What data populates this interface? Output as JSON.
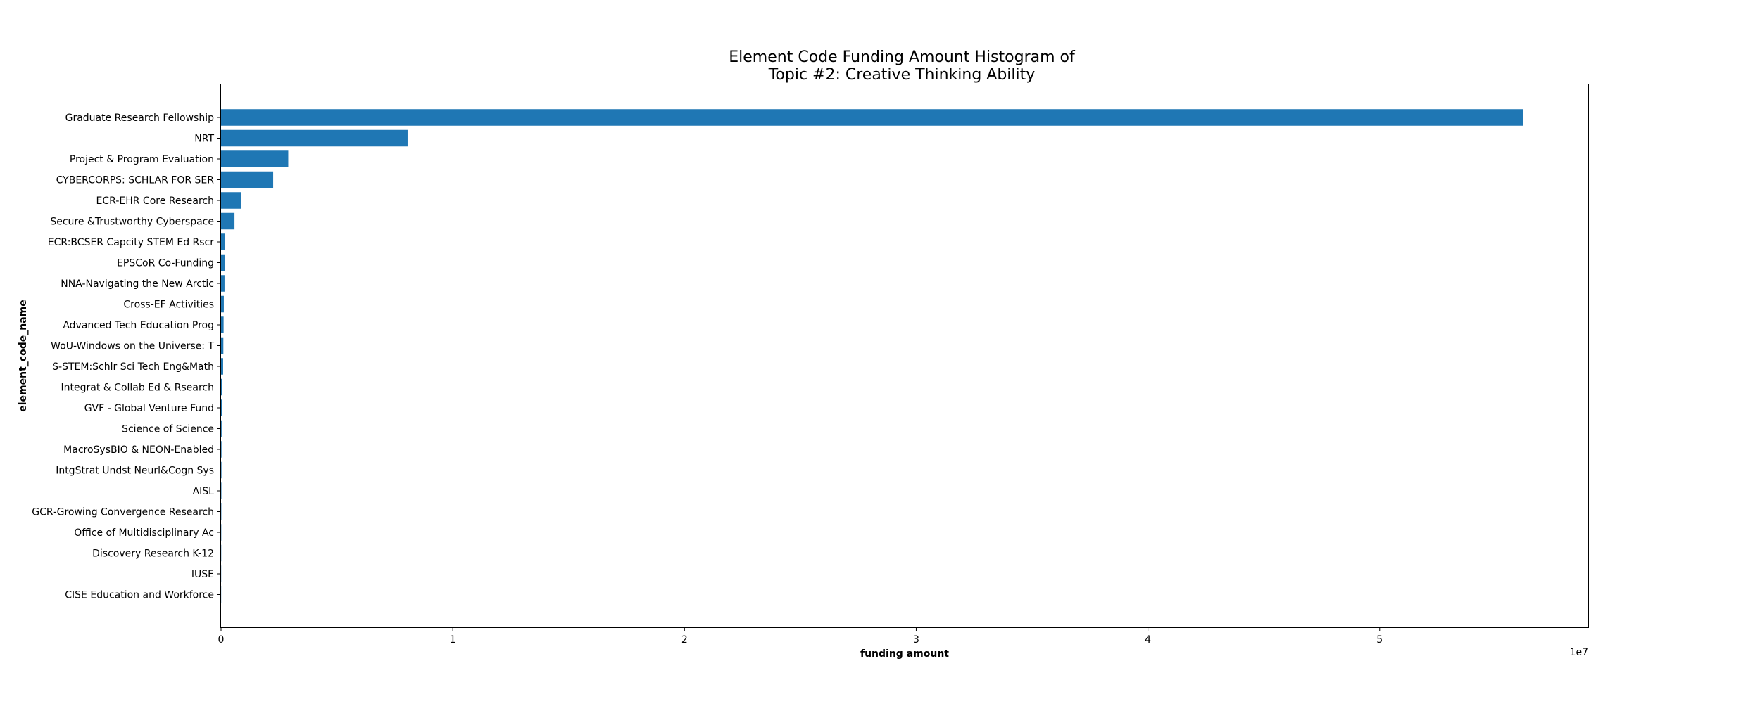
{
  "chart_data": {
    "type": "bar",
    "orientation": "horizontal",
    "title_lines": [
      "Element Code Funding Amount Histogram of",
      "Topic #2: Creative Thinking Ability"
    ],
    "xlabel": "funding amount",
    "ylabel": "element_code_name",
    "x_offset_label": "1e7",
    "x_scale": 10000000,
    "xlim": [
      0,
      59000000
    ],
    "x_tick_values": [
      0,
      10000000,
      20000000,
      30000000,
      40000000,
      50000000
    ],
    "x_tick_labels": [
      "0",
      "1",
      "2",
      "3",
      "4",
      "5"
    ],
    "bar_color": "#1f77b4",
    "grid": false,
    "legend": "none",
    "categories": [
      "Graduate Research Fellowship",
      "NRT",
      "Project & Program Evaluation",
      "CYBERCORPS: SCHLAR FOR SER",
      "ECR-EHR Core Research",
      "Secure &Trustworthy Cyberspace",
      "ECR:BCSER Capcity STEM Ed Rscr",
      "EPSCoR Co-Funding",
      "NNA-Navigating the New Arctic",
      "Cross-EF Activities",
      "Advanced Tech Education Prog",
      "WoU-Windows on the Universe: T",
      "S-STEM:Schlr Sci Tech Eng&Math",
      "Integrat & Collab Ed & Rsearch",
      "GVF - Global Venture Fund",
      "Science of Science",
      "MacroSysBIO & NEON-Enabled",
      "IntgStrat Undst Neurl&Cogn Sys",
      "AISL",
      "GCR-Growing Convergence Research",
      "Office of Multidisciplinary Ac",
      "Discovery Research K-12",
      "IUSE",
      "CISE Education and Workforce"
    ],
    "values": [
      56200000,
      8050000,
      2900000,
      2250000,
      880000,
      580000,
      180000,
      170000,
      150000,
      120000,
      110000,
      100000,
      90000,
      60000,
      30000,
      25000,
      20000,
      18000,
      15000,
      12000,
      10000,
      8000,
      6000,
      5000
    ]
  }
}
